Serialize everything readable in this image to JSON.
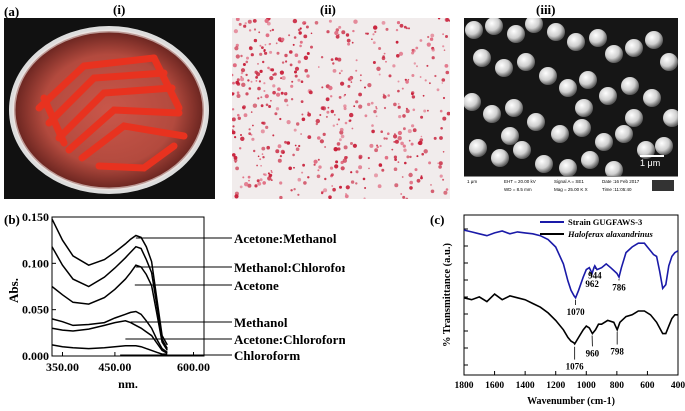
{
  "panels": {
    "a": "(a)",
    "i": "(i)",
    "ii": "(ii)",
    "iii": "(iii)",
    "b": "(b)",
    "c": "(c)"
  },
  "sem": {
    "scale_bar": "1 μm",
    "info_bar_scale": "1 μm",
    "info_eht": "EHT = 20.00 kV",
    "info_wd": "WD = 8.5 mm",
    "info_signal": "Signal A = SE1",
    "info_mag": "Mag = 25.00 K X",
    "info_date": "Date :16 Feb 2017",
    "info_time": "Time :11:05:40"
  },
  "chart_data": [
    {
      "type": "line",
      "panel": "b",
      "xlabel": "nm.",
      "ylabel": "Abs.",
      "xlim": [
        330,
        620
      ],
      "ylim": [
        0,
        0.15
      ],
      "x_ticks": [
        "350.00",
        "450.00",
        "600.00"
      ],
      "y_ticks": [
        "0.000",
        "0.050",
        "0.100",
        "0.150"
      ],
      "series": [
        {
          "name": "Acetone:Methanol",
          "x": [
            330,
            350,
            370,
            400,
            430,
            450,
            470,
            480,
            490,
            500,
            510,
            520,
            530,
            540,
            550
          ],
          "values": [
            0.148,
            0.125,
            0.108,
            0.098,
            0.104,
            0.112,
            0.121,
            0.126,
            0.13,
            0.128,
            0.118,
            0.102,
            0.062,
            0.022,
            0.012
          ]
        },
        {
          "name": "Methanol:Chloroform",
          "x": [
            330,
            350,
            370,
            400,
            430,
            450,
            470,
            480,
            490,
            500,
            510,
            520,
            530,
            540,
            550
          ],
          "values": [
            0.118,
            0.098,
            0.083,
            0.075,
            0.085,
            0.095,
            0.106,
            0.112,
            0.118,
            0.116,
            0.104,
            0.09,
            0.055,
            0.018,
            0.008
          ]
        },
        {
          "name": "Acetone",
          "x": [
            330,
            350,
            370,
            400,
            430,
            450,
            470,
            480,
            490,
            500,
            510,
            520,
            530,
            540,
            550
          ],
          "values": [
            0.075,
            0.066,
            0.058,
            0.056,
            0.063,
            0.072,
            0.083,
            0.09,
            0.098,
            0.096,
            0.088,
            0.076,
            0.046,
            0.015,
            0.006
          ]
        },
        {
          "name": "Methanol",
          "x": [
            330,
            350,
            370,
            400,
            430,
            450,
            470,
            480,
            490,
            500,
            510,
            520,
            530,
            540,
            550
          ],
          "values": [
            0.04,
            0.037,
            0.033,
            0.034,
            0.036,
            0.041,
            0.045,
            0.047,
            0.048,
            0.045,
            0.038,
            0.03,
            0.018,
            0.008,
            0.004
          ]
        },
        {
          "name": "Acetone:Chloroform",
          "x": [
            330,
            350,
            370,
            400,
            430,
            450,
            470,
            480,
            490,
            500,
            510,
            520,
            530,
            540,
            550
          ],
          "values": [
            0.03,
            0.028,
            0.027,
            0.029,
            0.033,
            0.036,
            0.038,
            0.036,
            0.033,
            0.03,
            0.026,
            0.022,
            0.014,
            0.006,
            0.003
          ]
        },
        {
          "name": "Chloroform",
          "x": [
            330,
            350,
            370,
            400,
            430,
            450,
            470,
            480,
            490,
            500,
            510,
            520,
            530,
            540,
            550
          ],
          "values": [
            0.012,
            0.01,
            0.009,
            0.008,
            0.009,
            0.01,
            0.011,
            0.011,
            0.011,
            0.01,
            0.008,
            0.006,
            0.004,
            0.002,
            0.002
          ]
        }
      ]
    },
    {
      "type": "line",
      "panel": "c",
      "xlabel": "Wavenumber (cm-1)",
      "ylabel": "% Transmittance (a.u.)",
      "xlim": [
        1800,
        400
      ],
      "x_ticks": [
        "1800",
        "1600",
        "1400",
        "1200",
        "1000",
        "800",
        "600",
        "400"
      ],
      "series": [
        {
          "name": "Strain GUGFAWS-3",
          "x": [
            1800,
            1750,
            1700,
            1650,
            1600,
            1550,
            1500,
            1450,
            1400,
            1350,
            1300,
            1250,
            1200,
            1150,
            1120,
            1100,
            1080,
            1070,
            1050,
            1020,
            1000,
            980,
            962,
            950,
            944,
            930,
            900,
            870,
            840,
            800,
            786,
            770,
            740,
            700,
            660,
            620,
            600,
            580,
            560,
            540,
            520,
            500,
            480,
            460,
            440,
            420,
            400
          ],
          "values": [
            0.84,
            0.82,
            0.8,
            0.78,
            0.81,
            0.83,
            0.8,
            0.82,
            0.81,
            0.8,
            0.78,
            0.74,
            0.66,
            0.48,
            0.3,
            0.2,
            0.14,
            0.12,
            0.2,
            0.34,
            0.42,
            0.44,
            0.38,
            0.44,
            0.46,
            0.42,
            0.44,
            0.48,
            0.44,
            0.38,
            0.34,
            0.44,
            0.6,
            0.66,
            0.7,
            0.7,
            0.66,
            0.62,
            0.58,
            0.56,
            0.4,
            0.22,
            0.26,
            0.46,
            0.56,
            0.6,
            0.62
          ]
        },
        {
          "name": "Haloferax alaxandrinus",
          "x": [
            1800,
            1750,
            1700,
            1650,
            1600,
            1550,
            1500,
            1450,
            1400,
            1350,
            1300,
            1250,
            1200,
            1150,
            1120,
            1100,
            1080,
            1076,
            1050,
            1020,
            1000,
            980,
            960,
            940,
            920,
            900,
            860,
            820,
            798,
            780,
            740,
            700,
            660,
            620,
            580,
            540,
            500,
            480,
            460,
            440,
            420,
            400
          ],
          "values": [
            0.12,
            0.1,
            0.13,
            0.08,
            0.16,
            0.1,
            0.14,
            0.12,
            0.1,
            0.06,
            0.02,
            -0.04,
            -0.12,
            -0.22,
            -0.3,
            -0.34,
            -0.36,
            -0.37,
            -0.3,
            -0.22,
            -0.18,
            -0.2,
            -0.26,
            -0.22,
            -0.16,
            -0.16,
            -0.12,
            -0.14,
            -0.22,
            -0.14,
            -0.08,
            -0.06,
            -0.02,
            -0.02,
            -0.06,
            -0.14,
            -0.26,
            -0.26,
            -0.18,
            -0.1,
            -0.06,
            -0.06
          ]
        }
      ],
      "annotations": [
        "962",
        "944",
        "786",
        "1070",
        "1076",
        "960",
        "798"
      ]
    }
  ]
}
